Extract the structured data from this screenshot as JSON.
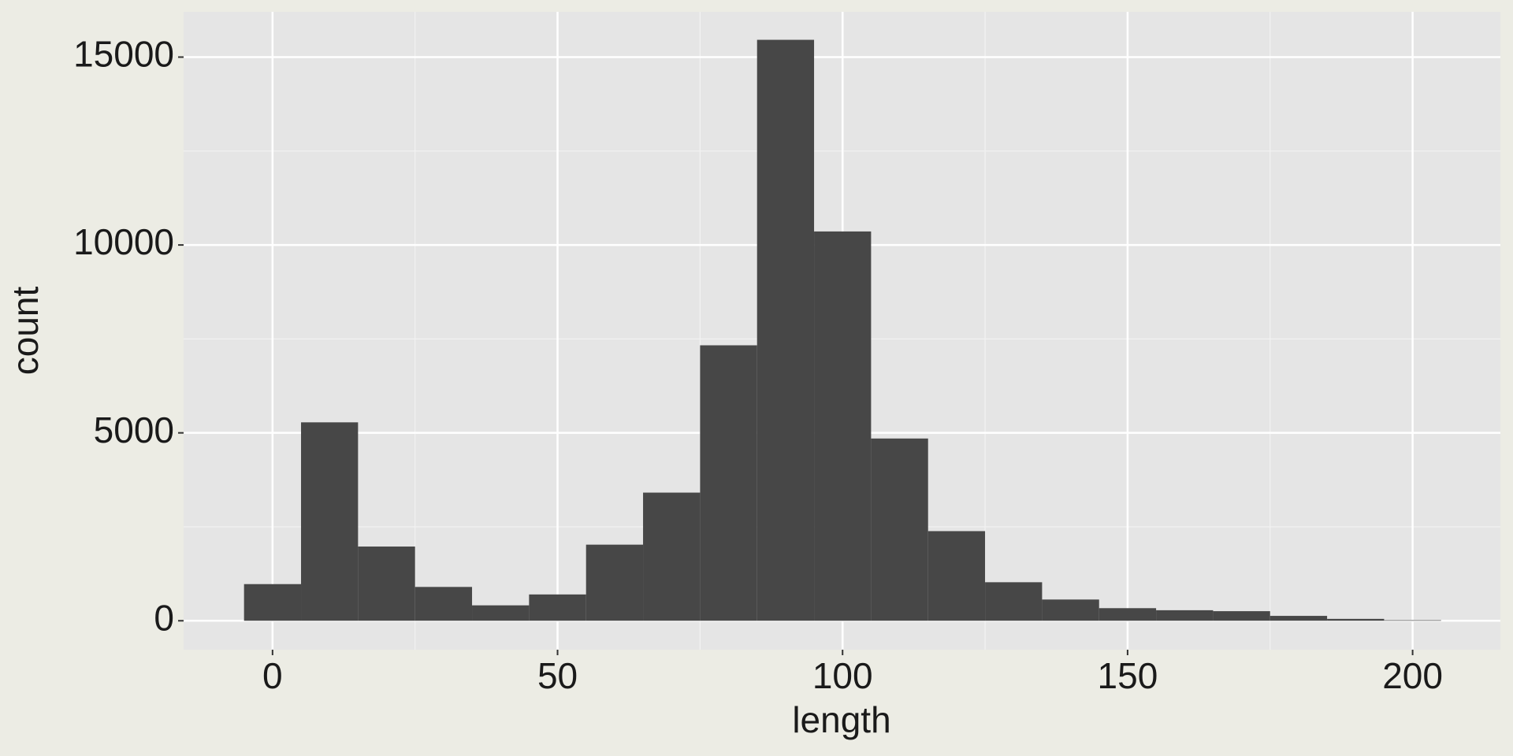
{
  "chart_data": {
    "type": "histogram",
    "x_label": "length",
    "y_label": "count",
    "bins": [
      -5,
      5,
      15,
      25,
      35,
      45,
      55,
      65,
      75,
      85,
      95,
      105,
      115,
      125,
      135,
      145,
      155,
      165,
      175,
      185,
      195,
      205
    ],
    "values": [
      975,
      5280,
      1975,
      900,
      410,
      700,
      2025,
      3410,
      7330,
      15460,
      10360,
      4850,
      2385,
      1025,
      565,
      335,
      280,
      255,
      130,
      50,
      15
    ],
    "color": "#474747",
    "xlim": [
      -15.6,
      215.4
    ],
    "xticks": [
      0,
      50,
      100,
      150,
      200
    ],
    "ylim": [
      -770,
      16205
    ],
    "yticks": [
      0,
      5000,
      10000,
      15000
    ],
    "grid": true
  }
}
